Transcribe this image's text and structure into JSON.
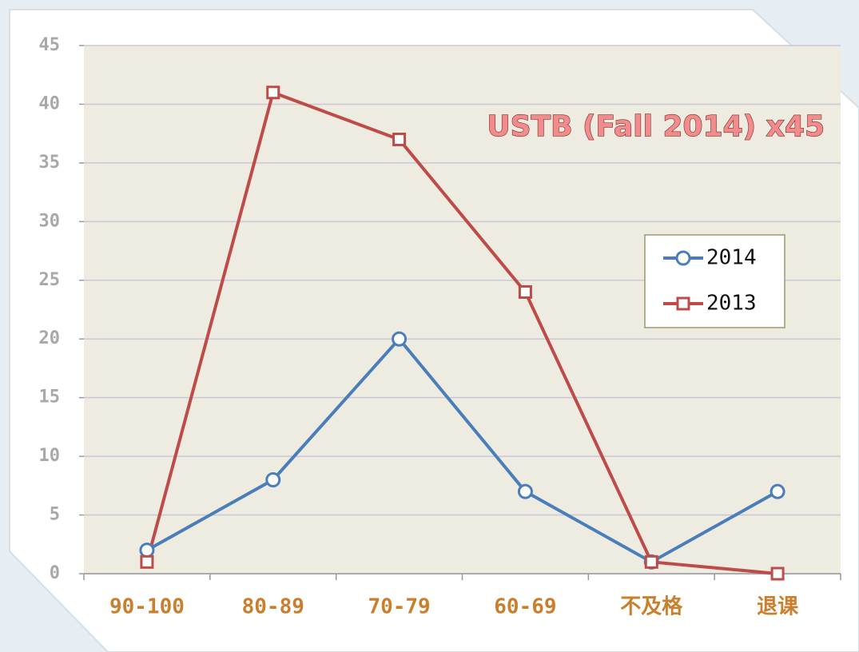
{
  "chart_data": {
    "type": "line",
    "title": "USTB (Fall 2014) x45",
    "categories": [
      "90-100",
      "80-89",
      "70-79",
      "60-69",
      "不及格",
      "退课"
    ],
    "series": [
      {
        "name": "2014",
        "color": "#4a7ebb",
        "marker": "circle",
        "values": [
          2,
          8,
          20,
          7,
          1,
          7
        ]
      },
      {
        "name": "2013",
        "color": "#be4b48",
        "marker": "square",
        "values": [
          1,
          41,
          37,
          24,
          1,
          0
        ]
      }
    ],
    "ylim": [
      0,
      45
    ],
    "yticks": [
      0,
      5,
      10,
      15,
      20,
      25,
      30,
      35,
      40,
      45
    ],
    "grid": true
  }
}
